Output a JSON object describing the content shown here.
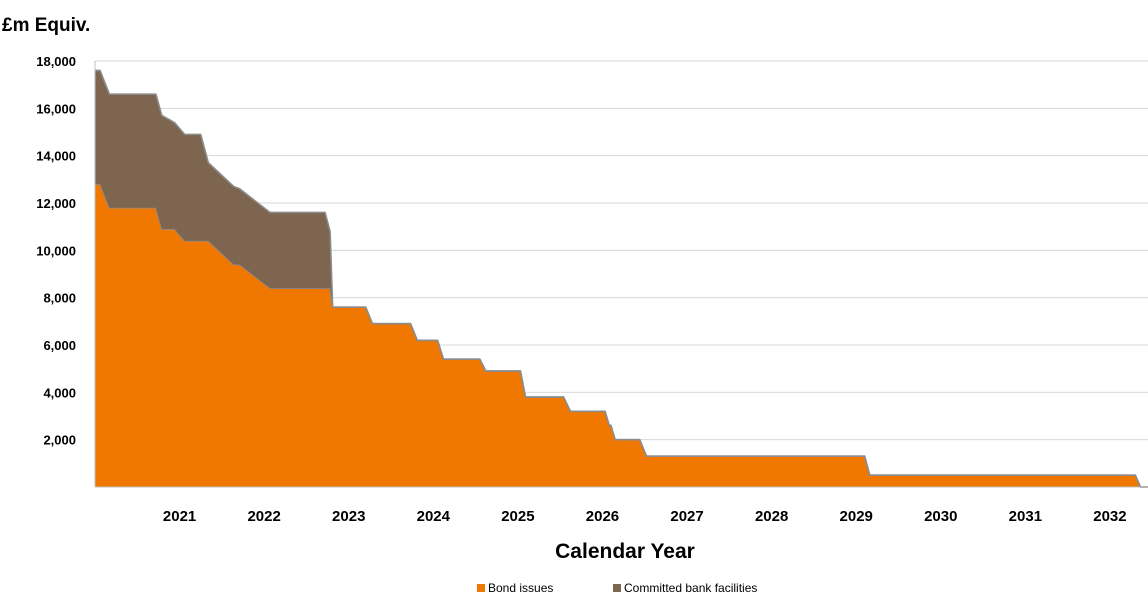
{
  "chart_data": {
    "type": "area",
    "ylabel": "£m Equiv.",
    "xlabel": "Calendar Year",
    "ylim": [
      0,
      18000
    ],
    "xlim": [
      2020.0,
      2032.45
    ],
    "y_ticks": [
      2000,
      4000,
      6000,
      8000,
      10000,
      12000,
      14000,
      16000,
      18000
    ],
    "y_tick_labels": [
      "2,000",
      "4,000",
      "6,000",
      "8,000",
      "10,000",
      "12,000",
      "14,000",
      "16,000",
      "18,000"
    ],
    "x_ticks": [
      2021,
      2022,
      2023,
      2024,
      2025,
      2026,
      2027,
      2028,
      2029,
      2030,
      2031,
      2032
    ],
    "x_tick_labels": [
      "2021",
      "2022",
      "2023",
      "2024",
      "2025",
      "2026",
      "2027",
      "2028",
      "2029",
      "2030",
      "2031",
      "2032"
    ],
    "grid": "horizontal",
    "legend_position": "bottom-center",
    "stacked": true,
    "x": [
      2020.0,
      2020.06,
      2020.17,
      2020.72,
      2020.79,
      2020.94,
      2021.06,
      2021.12,
      2021.25,
      2021.34,
      2021.64,
      2021.71,
      2022.07,
      2022.16,
      2022.72,
      2022.78,
      2022.81,
      2023.2,
      2023.28,
      2023.73,
      2023.81,
      2024.05,
      2024.12,
      2024.55,
      2024.62,
      2025.03,
      2025.09,
      2025.54,
      2025.62,
      2025.96,
      2026.03,
      2026.08,
      2026.1,
      2026.15,
      2026.44,
      2026.52,
      2029.1,
      2029.16,
      2032.3,
      2032.36,
      2032.45
    ],
    "series": [
      {
        "name": "Bond issues",
        "color": "#f07800",
        "values": [
          12800,
          12800,
          11800,
          11800,
          10900,
          10900,
          10400,
          10400,
          10400,
          10400,
          9400,
          9400,
          8400,
          8400,
          8400,
          8400,
          7600,
          7600,
          6900,
          6900,
          6200,
          6200,
          5400,
          5400,
          4900,
          4900,
          3800,
          3800,
          3200,
          3200,
          3200,
          2600,
          2600,
          2000,
          2000,
          1300,
          1300,
          500,
          500,
          0,
          0
        ]
      },
      {
        "name": "Committed bank facilities",
        "color": "#7e6550",
        "values": [
          4800,
          4800,
          4800,
          4800,
          4800,
          4500,
          4500,
          4500,
          4500,
          3300,
          3300,
          3200,
          3200,
          3200,
          3200,
          2400,
          0,
          0,
          0,
          0,
          0,
          0,
          0,
          0,
          0,
          0,
          0,
          0,
          0,
          0,
          0,
          0,
          0,
          0,
          0,
          0,
          0,
          0,
          0,
          0,
          0
        ]
      }
    ]
  }
}
